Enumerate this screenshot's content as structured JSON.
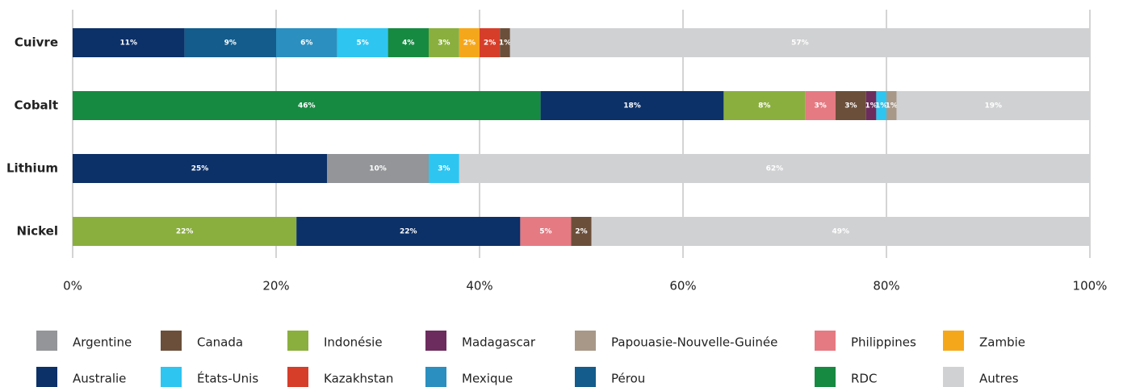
{
  "chart_data": {
    "type": "stacked-bar-horizontal",
    "series": [
      {
        "name": "Argentine",
        "color": "#939598"
      },
      {
        "name": "Canada",
        "color": "#6b4f3a"
      },
      {
        "name": "Indonésie",
        "color": "#8aaf3e"
      },
      {
        "name": "Madagascar",
        "color": "#6d2c5e"
      },
      {
        "name": "Papouasie-Nouvelle-Guinée",
        "color": "#a89888"
      },
      {
        "name": "Philippines",
        "color": "#e57a82"
      },
      {
        "name": "Zambie",
        "color": "#f5a71c"
      },
      {
        "name": "Australie",
        "color": "#0c3068"
      },
      {
        "name": "États-Unis",
        "color": "#2ec5f0"
      },
      {
        "name": "Kazakhstan",
        "color": "#d63e2a"
      },
      {
        "name": "Mexique",
        "color": "#2b8fbf"
      },
      {
        "name": "Pérou",
        "color": "#135c8c"
      },
      {
        "name": "RDC",
        "color": "#178a42"
      },
      {
        "name": "Autres",
        "color": "#d0d1d3"
      }
    ],
    "bars": [
      {
        "category": "Cuivre",
        "segments": [
          {
            "series": "Australie",
            "value": 11,
            "label": "11%"
          },
          {
            "series": "Pérou",
            "value": 9,
            "label": "9%"
          },
          {
            "series": "Mexique",
            "value": 6,
            "label": "6%"
          },
          {
            "series": "États-Unis",
            "value": 5,
            "label": "5%"
          },
          {
            "series": "RDC",
            "value": 4,
            "label": "4%"
          },
          {
            "series": "Indonésie",
            "value": 3,
            "label": "3%"
          },
          {
            "series": "Zambie",
            "value": 2,
            "label": "2%"
          },
          {
            "series": "Kazakhstan",
            "value": 2,
            "label": "2%"
          },
          {
            "series": "Canada",
            "value": 1,
            "label": "1%"
          },
          {
            "series": "Autres",
            "value": 57,
            "label": "57%"
          }
        ]
      },
      {
        "category": "Cobalt",
        "segments": [
          {
            "series": "RDC",
            "value": 46,
            "label": "46%"
          },
          {
            "series": "Australie",
            "value": 18,
            "label": "18%"
          },
          {
            "series": "Indonésie",
            "value": 8,
            "label": "8%"
          },
          {
            "series": "Philippines",
            "value": 3,
            "label": "3%"
          },
          {
            "series": "Canada",
            "value": 3,
            "label": "3%"
          },
          {
            "series": "Madagascar",
            "value": 1,
            "label": "1%"
          },
          {
            "series": "États-Unis",
            "value": 1,
            "label": "1%"
          },
          {
            "series": "Papouasie-Nouvelle-Guinée",
            "value": 1,
            "label": "1%"
          },
          {
            "series": "Autres",
            "value": 19,
            "label": "19%"
          }
        ]
      },
      {
        "category": "Lithium",
        "segments": [
          {
            "series": "Australie",
            "value": 25,
            "label": "25%"
          },
          {
            "series": "Argentine",
            "value": 10,
            "label": "10%"
          },
          {
            "series": "États-Unis",
            "value": 3,
            "label": "3%"
          },
          {
            "series": "Autres",
            "value": 62,
            "label": "62%"
          }
        ]
      },
      {
        "category": "Nickel",
        "segments": [
          {
            "series": "Indonésie",
            "value": 22,
            "label": "22%"
          },
          {
            "series": "Australie",
            "value": 22,
            "label": "22%"
          },
          {
            "series": "Philippines",
            "value": 5,
            "label": "5%"
          },
          {
            "series": "Canada",
            "value": 2,
            "label": "2%"
          },
          {
            "series": "Autres",
            "value": 49,
            "label": "49%"
          }
        ]
      }
    ],
    "xlim": [
      0,
      100
    ],
    "xticks": [
      {
        "value": 0,
        "label": "0%"
      },
      {
        "value": 20,
        "label": "20%"
      },
      {
        "value": 40,
        "label": "40%"
      },
      {
        "value": 60,
        "label": "60%"
      },
      {
        "value": 80,
        "label": "80%"
      },
      {
        "value": 100,
        "label": "100%"
      }
    ],
    "grid": true,
    "legend": "bottom"
  }
}
